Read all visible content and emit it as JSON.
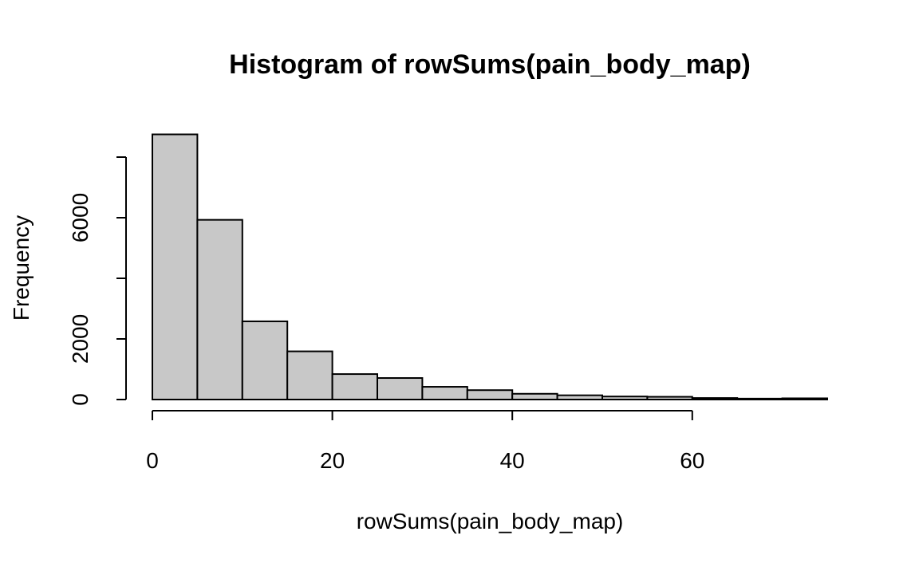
{
  "chart_data": {
    "type": "bar",
    "title": "Histogram of rowSums(pain_body_map)",
    "xlabel": "rowSums(pain_body_map)",
    "ylabel": "Frequency",
    "xlim": [
      0,
      75
    ],
    "ylim": [
      0,
      8000
    ],
    "x_ticks": [
      0,
      20,
      40,
      60
    ],
    "y_ticks": [
      0,
      2000,
      4000,
      6000,
      8000
    ],
    "x_tick_labels": [
      "0",
      "20",
      "40",
      "60"
    ],
    "y_tick_labels": [
      "0",
      "2000",
      "",
      "6000",
      ""
    ],
    "bin_edges": [
      0,
      5,
      10,
      15,
      20,
      25,
      30,
      35,
      40,
      45,
      50,
      55,
      60,
      65,
      70,
      75
    ],
    "values": [
      8750,
      5930,
      2580,
      1590,
      840,
      710,
      420,
      310,
      190,
      140,
      100,
      90,
      50,
      30,
      40
    ],
    "grid": false,
    "bar_color": "#c8c8c8",
    "edge_color": "#000000"
  }
}
